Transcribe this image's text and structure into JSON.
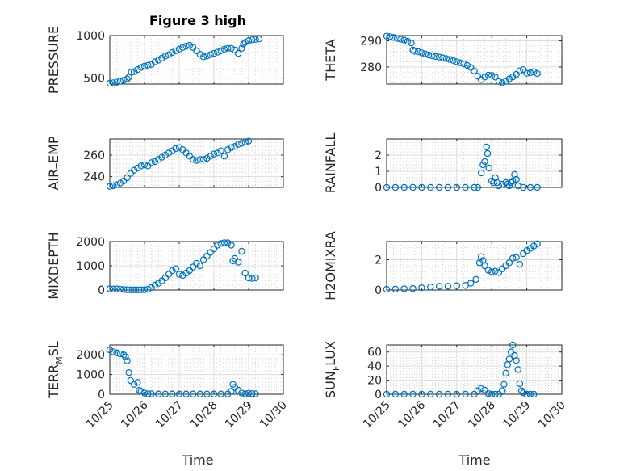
{
  "figure": {
    "title": "Figure 3 high",
    "xlabel": "Time",
    "xticks": [
      "10/25",
      "10/26",
      "10/27",
      "10/28",
      "10/29",
      "10/30"
    ],
    "marker_color": "#0072bd"
  },
  "chart_data": [
    {
      "type": "scatter",
      "title": "Figure 3 high",
      "ylabel": "PRESSURE",
      "xlabel": "",
      "xlim": [
        0,
        5
      ],
      "ylim": [
        430,
        1000
      ],
      "yticks": [
        500,
        1000
      ],
      "grid": true,
      "points": [
        [
          0.0,
          440
        ],
        [
          0.1,
          445
        ],
        [
          0.2,
          452
        ],
        [
          0.3,
          462
        ],
        [
          0.4,
          475
        ],
        [
          0.5,
          490
        ],
        [
          0.55,
          510
        ],
        [
          0.62,
          570
        ],
        [
          0.7,
          575
        ],
        [
          0.8,
          600
        ],
        [
          0.9,
          625
        ],
        [
          1.0,
          640
        ],
        [
          1.1,
          650
        ],
        [
          1.2,
          660
        ],
        [
          1.3,
          690
        ],
        [
          1.4,
          710
        ],
        [
          1.5,
          735
        ],
        [
          1.6,
          760
        ],
        [
          1.7,
          775
        ],
        [
          1.8,
          800
        ],
        [
          1.9,
          820
        ],
        [
          2.0,
          840
        ],
        [
          2.1,
          860
        ],
        [
          2.2,
          875
        ],
        [
          2.3,
          885
        ],
        [
          2.4,
          860
        ],
        [
          2.5,
          820
        ],
        [
          2.6,
          780
        ],
        [
          2.7,
          750
        ],
        [
          2.8,
          760
        ],
        [
          2.9,
          775
        ],
        [
          3.0,
          790
        ],
        [
          3.1,
          805
        ],
        [
          3.2,
          820
        ],
        [
          3.3,
          840
        ],
        [
          3.4,
          850
        ],
        [
          3.5,
          850
        ],
        [
          3.6,
          830
        ],
        [
          3.7,
          790
        ],
        [
          3.8,
          850
        ],
        [
          3.85,
          900
        ],
        [
          3.9,
          920
        ],
        [
          4.0,
          940
        ],
        [
          4.1,
          950
        ],
        [
          4.2,
          955
        ],
        [
          4.3,
          960
        ]
      ]
    },
    {
      "type": "scatter",
      "ylabel": "THETA",
      "xlabel": "",
      "xlim": [
        0,
        5
      ],
      "ylim": [
        273.5,
        292
      ],
      "yticks": [
        280,
        290
      ],
      "grid": true,
      "points": [
        [
          0.0,
          291.8
        ],
        [
          0.1,
          291.6
        ],
        [
          0.2,
          291.3
        ],
        [
          0.3,
          290.9
        ],
        [
          0.4,
          290.6
        ],
        [
          0.5,
          290.3
        ],
        [
          0.6,
          289.8
        ],
        [
          0.7,
          289.2
        ],
        [
          0.75,
          286.5
        ],
        [
          0.8,
          286.0
        ],
        [
          0.9,
          285.8
        ],
        [
          1.0,
          285.4
        ],
        [
          1.1,
          285.0
        ],
        [
          1.2,
          284.6
        ],
        [
          1.3,
          284.3
        ],
        [
          1.4,
          284.0
        ],
        [
          1.5,
          283.8
        ],
        [
          1.6,
          283.5
        ],
        [
          1.7,
          283.2
        ],
        [
          1.8,
          282.9
        ],
        [
          1.9,
          282.5
        ],
        [
          2.0,
          282.0
        ],
        [
          2.1,
          281.6
        ],
        [
          2.2,
          281.2
        ],
        [
          2.3,
          280.6
        ],
        [
          2.4,
          279.8
        ],
        [
          2.5,
          278.5
        ],
        [
          2.6,
          276.5
        ],
        [
          2.7,
          275.2
        ],
        [
          2.8,
          276.2
        ],
        [
          2.9,
          276.9
        ],
        [
          3.0,
          276.8
        ],
        [
          3.1,
          276.2
        ],
        [
          3.2,
          274.5
        ],
        [
          3.3,
          274.0
        ],
        [
          3.4,
          274.5
        ],
        [
          3.5,
          275.5
        ],
        [
          3.6,
          276.2
        ],
        [
          3.7,
          277.2
        ],
        [
          3.8,
          278.5
        ],
        [
          3.9,
          279.0
        ],
        [
          4.0,
          277.6
        ],
        [
          4.1,
          277.8
        ],
        [
          4.2,
          278.2
        ],
        [
          4.3,
          277.5
        ]
      ]
    },
    {
      "type": "scatter",
      "ylabel": "AIR_TEMP",
      "xlabel": "",
      "xlim": [
        0,
        5
      ],
      "ylim": [
        230,
        275
      ],
      "yticks": [
        240,
        260
      ],
      "grid": true,
      "points": [
        [
          0.0,
          231
        ],
        [
          0.1,
          231.5
        ],
        [
          0.2,
          232.5
        ],
        [
          0.3,
          234
        ],
        [
          0.4,
          236
        ],
        [
          0.5,
          239
        ],
        [
          0.6,
          243
        ],
        [
          0.7,
          246
        ],
        [
          0.8,
          248
        ],
        [
          0.9,
          250
        ],
        [
          1.0,
          251
        ],
        [
          1.1,
          250
        ],
        [
          1.2,
          253
        ],
        [
          1.3,
          254
        ],
        [
          1.4,
          256
        ],
        [
          1.5,
          258
        ],
        [
          1.6,
          260
        ],
        [
          1.7,
          262
        ],
        [
          1.8,
          264
        ],
        [
          1.9,
          266
        ],
        [
          2.0,
          267
        ],
        [
          2.1,
          265
        ],
        [
          2.2,
          262
        ],
        [
          2.3,
          259
        ],
        [
          2.4,
          256
        ],
        [
          2.5,
          255
        ],
        [
          2.6,
          256
        ],
        [
          2.7,
          256
        ],
        [
          2.8,
          257
        ],
        [
          2.9,
          259
        ],
        [
          3.0,
          261
        ],
        [
          3.1,
          262
        ],
        [
          3.2,
          264
        ],
        [
          3.3,
          259
        ],
        [
          3.4,
          265
        ],
        [
          3.5,
          267
        ],
        [
          3.6,
          268
        ],
        [
          3.7,
          270
        ],
        [
          3.8,
          271
        ],
        [
          3.9,
          272
        ],
        [
          4.0,
          273
        ]
      ]
    },
    {
      "type": "scatter",
      "ylabel": "RAINFALL",
      "xlabel": "",
      "xlim": [
        0,
        5
      ],
      "ylim": [
        0,
        3
      ],
      "yticks": [
        0,
        1,
        2
      ],
      "grid": true,
      "points": [
        [
          0.0,
          0
        ],
        [
          0.25,
          0
        ],
        [
          0.5,
          0
        ],
        [
          0.75,
          0
        ],
        [
          1.0,
          0
        ],
        [
          1.25,
          0
        ],
        [
          1.5,
          0
        ],
        [
          1.75,
          0
        ],
        [
          2.0,
          0
        ],
        [
          2.25,
          0
        ],
        [
          2.5,
          0
        ],
        [
          2.6,
          0
        ],
        [
          2.7,
          0.9
        ],
        [
          2.75,
          1.4
        ],
        [
          2.8,
          1.6
        ],
        [
          2.85,
          2.5
        ],
        [
          2.88,
          2.1
        ],
        [
          2.92,
          1.2
        ],
        [
          3.0,
          0.4
        ],
        [
          3.05,
          0.3
        ],
        [
          3.1,
          0.6
        ],
        [
          3.15,
          0.3
        ],
        [
          3.2,
          0.1
        ],
        [
          3.3,
          0.2
        ],
        [
          3.4,
          0.3
        ],
        [
          3.45,
          0.2
        ],
        [
          3.5,
          0.1
        ],
        [
          3.55,
          0.3
        ],
        [
          3.6,
          0.4
        ],
        [
          3.65,
          0.8
        ],
        [
          3.7,
          0.5
        ],
        [
          3.75,
          0.1
        ],
        [
          3.9,
          0
        ],
        [
          4.1,
          0
        ],
        [
          4.3,
          0
        ]
      ]
    },
    {
      "type": "scatter",
      "ylabel": "MIXDEPTH",
      "xlabel": "",
      "xlim": [
        0,
        5
      ],
      "ylim": [
        0,
        2000
      ],
      "yticks": [
        0,
        1000,
        2000
      ],
      "grid": true,
      "points": [
        [
          0.0,
          50
        ],
        [
          0.1,
          40
        ],
        [
          0.2,
          45
        ],
        [
          0.3,
          30
        ],
        [
          0.4,
          20
        ],
        [
          0.5,
          10
        ],
        [
          0.6,
          5
        ],
        [
          0.7,
          5
        ],
        [
          0.8,
          5
        ],
        [
          0.9,
          5
        ],
        [
          1.0,
          10
        ],
        [
          1.1,
          30
        ],
        [
          1.2,
          100
        ],
        [
          1.3,
          200
        ],
        [
          1.4,
          280
        ],
        [
          1.5,
          380
        ],
        [
          1.6,
          500
        ],
        [
          1.7,
          650
        ],
        [
          1.8,
          800
        ],
        [
          1.9,
          880
        ],
        [
          2.0,
          650
        ],
        [
          2.1,
          600
        ],
        [
          2.2,
          700
        ],
        [
          2.3,
          800
        ],
        [
          2.4,
          950
        ],
        [
          2.5,
          1100
        ],
        [
          2.6,
          1000
        ],
        [
          2.7,
          1250
        ],
        [
          2.8,
          1400
        ],
        [
          2.9,
          1550
        ],
        [
          3.0,
          1700
        ],
        [
          3.1,
          1850
        ],
        [
          3.2,
          1920
        ],
        [
          3.3,
          1950
        ],
        [
          3.4,
          1950
        ],
        [
          3.5,
          1850
        ],
        [
          3.55,
          1200
        ],
        [
          3.6,
          1300
        ],
        [
          3.7,
          1150
        ],
        [
          3.8,
          1600
        ],
        [
          3.9,
          700
        ],
        [
          4.0,
          500
        ],
        [
          4.1,
          480
        ],
        [
          4.2,
          500
        ]
      ]
    },
    {
      "type": "scatter",
      "ylabel": "H2OMIXRA",
      "xlabel": "",
      "xlim": [
        0,
        5
      ],
      "ylim": [
        0,
        3.2
      ],
      "yticks": [
        0,
        2
      ],
      "grid": true,
      "points": [
        [
          0.0,
          0.05
        ],
        [
          0.25,
          0.06
        ],
        [
          0.5,
          0.08
        ],
        [
          0.75,
          0.1
        ],
        [
          1.0,
          0.15
        ],
        [
          1.25,
          0.2
        ],
        [
          1.5,
          0.25
        ],
        [
          1.75,
          0.25
        ],
        [
          2.0,
          0.28
        ],
        [
          2.25,
          0.3
        ],
        [
          2.4,
          0.45
        ],
        [
          2.55,
          0.7
        ],
        [
          2.65,
          1.8
        ],
        [
          2.7,
          2.2
        ],
        [
          2.75,
          1.95
        ],
        [
          2.8,
          1.6
        ],
        [
          2.9,
          1.3
        ],
        [
          3.0,
          1.2
        ],
        [
          3.1,
          1.25
        ],
        [
          3.2,
          1.15
        ],
        [
          3.3,
          1.4
        ],
        [
          3.4,
          1.6
        ],
        [
          3.5,
          1.8
        ],
        [
          3.6,
          2.1
        ],
        [
          3.7,
          2.15
        ],
        [
          3.8,
          1.7
        ],
        [
          3.9,
          2.4
        ],
        [
          4.0,
          2.6
        ],
        [
          4.1,
          2.75
        ],
        [
          4.2,
          2.9
        ],
        [
          4.3,
          3.05
        ]
      ]
    },
    {
      "type": "scatter",
      "ylabel": "TERR_MSL",
      "xlabel": "",
      "xlim": [
        0,
        5
      ],
      "ylim": [
        0,
        2500
      ],
      "yticks": [
        0,
        1000,
        2000
      ],
      "grid": true,
      "points": [
        [
          0.0,
          2250
        ],
        [
          0.1,
          2150
        ],
        [
          0.2,
          2100
        ],
        [
          0.3,
          2050
        ],
        [
          0.4,
          2000
        ],
        [
          0.45,
          1900
        ],
        [
          0.5,
          1700
        ],
        [
          0.55,
          1100
        ],
        [
          0.6,
          700
        ],
        [
          0.7,
          500
        ],
        [
          0.8,
          600
        ],
        [
          0.85,
          200
        ],
        [
          0.9,
          150
        ],
        [
          1.0,
          60
        ],
        [
          1.1,
          20
        ],
        [
          1.2,
          20
        ],
        [
          1.4,
          10
        ],
        [
          1.6,
          10
        ],
        [
          1.8,
          10
        ],
        [
          2.0,
          10
        ],
        [
          2.2,
          10
        ],
        [
          2.4,
          10
        ],
        [
          2.6,
          10
        ],
        [
          2.8,
          10
        ],
        [
          3.0,
          10
        ],
        [
          3.2,
          10
        ],
        [
          3.4,
          10
        ],
        [
          3.5,
          150
        ],
        [
          3.55,
          500
        ],
        [
          3.6,
          350
        ],
        [
          3.7,
          200
        ],
        [
          3.8,
          60
        ],
        [
          3.9,
          20
        ],
        [
          4.0,
          50
        ],
        [
          4.1,
          30
        ],
        [
          4.2,
          20
        ]
      ]
    },
    {
      "type": "scatter",
      "ylabel": "SUN_FLUX",
      "xlabel": "",
      "xlim": [
        0,
        5
      ],
      "ylim": [
        0,
        70
      ],
      "yticks": [
        0,
        20,
        40,
        60
      ],
      "grid": true,
      "points": [
        [
          0.0,
          0
        ],
        [
          0.25,
          0
        ],
        [
          0.5,
          0
        ],
        [
          0.75,
          0
        ],
        [
          1.0,
          0
        ],
        [
          1.25,
          0
        ],
        [
          1.5,
          0
        ],
        [
          1.75,
          0
        ],
        [
          2.0,
          0
        ],
        [
          2.25,
          0
        ],
        [
          2.5,
          0
        ],
        [
          2.6,
          5
        ],
        [
          2.7,
          8
        ],
        [
          2.8,
          6
        ],
        [
          2.9,
          1
        ],
        [
          3.0,
          0
        ],
        [
          3.1,
          0
        ],
        [
          3.2,
          0
        ],
        [
          3.3,
          5
        ],
        [
          3.35,
          14
        ],
        [
          3.4,
          30
        ],
        [
          3.45,
          42
        ],
        [
          3.5,
          50
        ],
        [
          3.55,
          60
        ],
        [
          3.6,
          70
        ],
        [
          3.65,
          55
        ],
        [
          3.7,
          48
        ],
        [
          3.75,
          35
        ],
        [
          3.8,
          15
        ],
        [
          3.85,
          5
        ],
        [
          3.9,
          2
        ],
        [
          4.0,
          0
        ],
        [
          4.1,
          0
        ],
        [
          4.2,
          0
        ]
      ]
    }
  ]
}
